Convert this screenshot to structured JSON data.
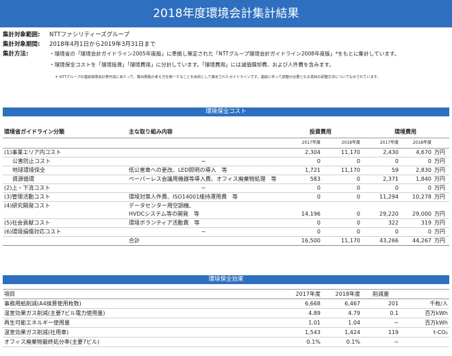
{
  "title": "2018年度環境会計集計結果",
  "meta": {
    "scope_label": "集計対象範囲:",
    "scope_value": "NTTファシリティーズグループ",
    "period_label": "集計対象期間:",
    "period_value": "2018年4月1日から2019年3月31日まで",
    "method_label": "集計方法:",
    "method_line1": "・環境省の「環境会計ガイドライン2005年度版」に準拠し策定された「NTTグループ環境会計ガイドライン2008年度版」*をもとに集計しています。",
    "method_line2": "・環境保全コストを「環境投資」「環境費用」に分計しています。「環境費用」には減価償却費、および人件費を含みます。",
    "footnote": "＊ NTTグループの連結環境会計表作成にあたって、算出根拠の考え方を統一することを目的として策定されたガイドラインです。連結に伴って調整が必要となる項目の調整方法についても示されています。"
  },
  "cost": {
    "section_title": "環境保全コスト",
    "header": {
      "category": "環境省ガイドライン分類",
      "content": "主な取り組み内容",
      "invest": "投資費用",
      "expense": "環境費用"
    },
    "subheader": {
      "y2017": "2017年度",
      "y2018": "2018年度",
      "e2017": "2017年度",
      "e2018": "2018年度"
    },
    "rows": [
      {
        "cat": "(1)事業エリア内コスト",
        "act": "",
        "i17": "2,304",
        "i18": "11,170",
        "e17": "2,430",
        "e18": "4,670",
        "unit": "万円"
      },
      {
        "cat": "公害防止コスト",
        "act": "−",
        "i17": "0",
        "i18": "0",
        "e17": "0",
        "e18": "0",
        "unit": "万円"
      },
      {
        "cat": "地球環境保全",
        "act": "低公害車への更改、LED照明の導入　等",
        "i17": "1,721",
        "i18": "11,170",
        "e17": "59",
        "e18": "2,830",
        "unit": "万円"
      },
      {
        "cat": "資源循環",
        "act": "ペーパーレス会議用機器等導入費、オフィス廃棄物処理　等",
        "i17": "583",
        "i18": "0",
        "e17": "2,371",
        "e18": "1,840",
        "unit": "万円"
      },
      {
        "cat": "(2)上・下流コスト",
        "act": "−",
        "i17": "0",
        "i18": "0",
        "e17": "0",
        "e18": "0",
        "unit": "万円"
      },
      {
        "cat": "(3)管理活動コスト",
        "act": "環境対策人件費、ISO14001維持運用費　等",
        "i17": "0",
        "i18": "0",
        "e17": "11,294",
        "e18": "10,278",
        "unit": "万円"
      },
      {
        "cat": "(4)研究開発コスト",
        "act": "データセンター用空調機、",
        "act2": "HVDCシステム等の開発　等",
        "i17": "14,196",
        "i18": "0",
        "e17": "29,220",
        "e18": "29,000",
        "unit": "万円"
      },
      {
        "cat": "(5)社会貢献コスト",
        "act": "環境ボランティア活動費　等",
        "i17": "0",
        "i18": "0",
        "e17": "322",
        "e18": "319",
        "unit": "万円"
      },
      {
        "cat": "(6)環境損傷対応コスト",
        "act": "−",
        "i17": "0",
        "i18": "0",
        "e17": "0",
        "e18": "0",
        "unit": "万円"
      }
    ],
    "total": {
      "label": "合計",
      "i17": "16,500",
      "i18": "11,170",
      "e17": "43,266",
      "e18": "44,267",
      "unit": "万円"
    }
  },
  "effect": {
    "section_title": "環境保全効果",
    "header": {
      "item": "項目",
      "y2017": "2017年度",
      "y2018": "2018年度",
      "reduction": "削減量",
      "unit": ""
    },
    "rows": [
      {
        "item": "事務用紙削減(A4換算使用枚数)",
        "y2017": "6,668",
        "y2018": "6,467",
        "red": "201",
        "unit": "千枚/人"
      },
      {
        "item": "温室効果ガス削減(主要7ビル電力使用量)",
        "y2017": "4.89",
        "y2018": "4.79",
        "red": "0.1",
        "unit": "百万kWh"
      },
      {
        "item": "再生可能エネルギー使用量",
        "y2017": "1.01",
        "y2018": "1.04",
        "red": "−",
        "unit": "百万kWh"
      },
      {
        "item": "温室効果ガス削減(社用車)",
        "y2017": "1,543",
        "y2018": "1,424",
        "red": "119",
        "unit": "t-CO₂"
      },
      {
        "item": "オフィス廃棄物最終処分率(主要7ビル)",
        "y2017": "0.1%",
        "y2018": "0.1%",
        "red": "−",
        "unit": ""
      }
    ]
  }
}
